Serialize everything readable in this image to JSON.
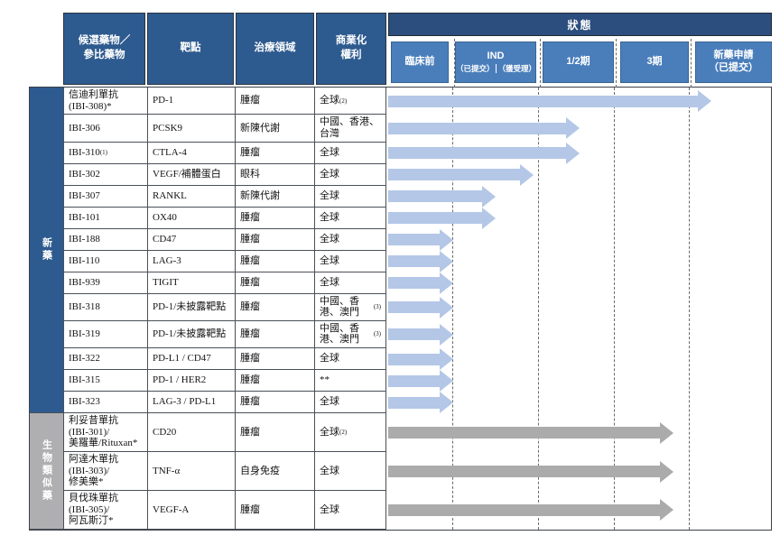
{
  "colors": {
    "header_blue": "#2E5B8F",
    "status_band_blue": "#2B4E7E",
    "stage_box_blue": "#4A7EBB",
    "arrow_blue": "#B4C7E7",
    "arrow_gray": "#ABABAB",
    "group_new_bg": "#2E5B8F",
    "group_biosimilar_bg": "#AFAFB1"
  },
  "pipeline": {
    "header": {
      "drug": "候選藥物／\n參比藥物",
      "target": "靶點",
      "area": "治療領域",
      "rights": "商業化\n權利",
      "status": "狀態"
    },
    "stages": [
      {
        "label": "臨床前"
      },
      {
        "label": "IND",
        "sub": [
          "（已提交）",
          "（獲受理）"
        ]
      },
      {
        "label": "1/2期"
      },
      {
        "label": "3期"
      },
      {
        "label": "新藥申請\n（已提交）"
      }
    ],
    "groups": [
      {
        "id": "new",
        "label": "新藥"
      },
      {
        "id": "biosimilar",
        "label": "生物類似藥"
      }
    ],
    "rows": [
      {
        "drug": "信迪利單抗\n(IBI-308)*",
        "target": "PD-1",
        "area": "腫瘤",
        "rights": "全球",
        "rights_sup": "(2)",
        "group": "new",
        "arrow_pct": 84.5,
        "stage_reached": "新藥申請（已提交）"
      },
      {
        "drug": "IBI-306",
        "target": "PCSK9",
        "area": "新陳代謝",
        "rights": "中國、香港、台灣",
        "group": "new",
        "arrow_pct": 50,
        "stage_reached": "1/2期"
      },
      {
        "drug": "IBI-310",
        "drug_sup": "(1)",
        "target": "CTLA-4",
        "area": "腫瘤",
        "rights": "全球",
        "group": "new",
        "arrow_pct": 50,
        "stage_reached": "1/2期"
      },
      {
        "drug": "IBI-302",
        "target": "VEGF/補體蛋白",
        "area": "眼科",
        "rights": "全球",
        "group": "new",
        "arrow_pct": 38,
        "stage_reached": "IND（獲受理）"
      },
      {
        "drug": "IBI-307",
        "target": "RANKL",
        "area": "新陳代謝",
        "rights": "全球",
        "group": "new",
        "arrow_pct": 28,
        "stage_reached": "IND（已提交）"
      },
      {
        "drug": "IBI-101",
        "target": "OX40",
        "area": "腫瘤",
        "rights": "全球",
        "group": "new",
        "arrow_pct": 28,
        "stage_reached": "IND（已提交）"
      },
      {
        "drug": "IBI-188",
        "target": "CD47",
        "area": "腫瘤",
        "rights": "全球",
        "group": "new",
        "arrow_pct": 17,
        "stage_reached": "臨床前"
      },
      {
        "drug": "IBI-110",
        "target": "LAG-3",
        "area": "腫瘤",
        "rights": "全球",
        "group": "new",
        "arrow_pct": 17,
        "stage_reached": "臨床前"
      },
      {
        "drug": "IBI-939",
        "target": "TIGIT",
        "area": "腫瘤",
        "rights": "全球",
        "group": "new",
        "arrow_pct": 17,
        "stage_reached": "臨床前"
      },
      {
        "drug": "IBI-318",
        "target": "PD-1/未披露靶點",
        "area": "腫瘤",
        "rights": "中國、香港、澳門",
        "rights_sup": "(3)",
        "group": "new",
        "arrow_pct": 17,
        "stage_reached": "臨床前"
      },
      {
        "drug": "IBI-319",
        "target": "PD-1/未披露靶點",
        "area": "腫瘤",
        "rights": "中國、香港、澳門",
        "rights_sup": "(3)",
        "group": "new",
        "arrow_pct": 17,
        "stage_reached": "臨床前"
      },
      {
        "drug": "IBI-322",
        "target": "PD-L1 / CD47",
        "area": "腫瘤",
        "rights": "全球",
        "group": "new",
        "arrow_pct": 17,
        "stage_reached": "臨床前"
      },
      {
        "drug": "IBI-315",
        "target": "PD-1 / HER2",
        "area": "腫瘤",
        "rights": "**",
        "group": "new",
        "arrow_pct": 17,
        "stage_reached": "臨床前"
      },
      {
        "drug": "IBI-323",
        "target": "LAG-3 / PD-L1",
        "area": "腫瘤",
        "rights": "全球",
        "group": "new",
        "arrow_pct": 17,
        "stage_reached": "臨床前"
      },
      {
        "drug": "利妥昔單抗\n(IBI-301)/\n美羅華/Rituxan*",
        "target": "CD20",
        "area": "腫瘤",
        "rights": "全球",
        "rights_sup": "(2)",
        "group": "biosimilar",
        "arrow_pct": 74.5,
        "stage_reached": "3期"
      },
      {
        "drug": "阿達木單抗\n(IBI-303)/\n修美樂*",
        "target": "TNF-α",
        "area": "自身免疫",
        "rights": "全球",
        "group": "biosimilar",
        "arrow_pct": 74.5,
        "stage_reached": "3期"
      },
      {
        "drug": "貝伐珠單抗\n(IBI-305)/\n阿瓦斯汀*",
        "target": "VEGF-A",
        "area": "腫瘤",
        "rights": "全球",
        "group": "biosimilar",
        "arrow_pct": 74.5,
        "stage_reached": "3期"
      }
    ]
  },
  "chart_data": {
    "type": "table",
    "title": "狀態",
    "stages": [
      "臨床前",
      "IND（已提交）",
      "IND（獲受理）",
      "1/2期",
      "3期",
      "新藥申請（已提交）"
    ],
    "legend_position": "none",
    "series": [
      {
        "name": "信迪利單抗 (IBI-308)*",
        "group": "新藥",
        "stage_reached": "新藥申請（已提交）"
      },
      {
        "name": "IBI-306",
        "group": "新藥",
        "stage_reached": "1/2期"
      },
      {
        "name": "IBI-310(1)",
        "group": "新藥",
        "stage_reached": "1/2期"
      },
      {
        "name": "IBI-302",
        "group": "新藥",
        "stage_reached": "IND（獲受理）"
      },
      {
        "name": "IBI-307",
        "group": "新藥",
        "stage_reached": "IND（已提交）"
      },
      {
        "name": "IBI-101",
        "group": "新藥",
        "stage_reached": "IND（已提交）"
      },
      {
        "name": "IBI-188",
        "group": "新藥",
        "stage_reached": "臨床前"
      },
      {
        "name": "IBI-110",
        "group": "新藥",
        "stage_reached": "臨床前"
      },
      {
        "name": "IBI-939",
        "group": "新藥",
        "stage_reached": "臨床前"
      },
      {
        "name": "IBI-318",
        "group": "新藥",
        "stage_reached": "臨床前"
      },
      {
        "name": "IBI-319",
        "group": "新藥",
        "stage_reached": "臨床前"
      },
      {
        "name": "IBI-322",
        "group": "新藥",
        "stage_reached": "臨床前"
      },
      {
        "name": "IBI-315",
        "group": "新藥",
        "stage_reached": "臨床前"
      },
      {
        "name": "IBI-323",
        "group": "新藥",
        "stage_reached": "臨床前"
      },
      {
        "name": "利妥昔單抗 (IBI-301)/美羅華/Rituxan*",
        "group": "生物類似藥",
        "stage_reached": "3期"
      },
      {
        "name": "阿達木單抗 (IBI-303)/修美樂*",
        "group": "生物類似藥",
        "stage_reached": "3期"
      },
      {
        "name": "貝伐珠單抗 (IBI-305)/阿瓦斯汀*",
        "group": "生物類似藥",
        "stage_reached": "3期"
      }
    ]
  }
}
